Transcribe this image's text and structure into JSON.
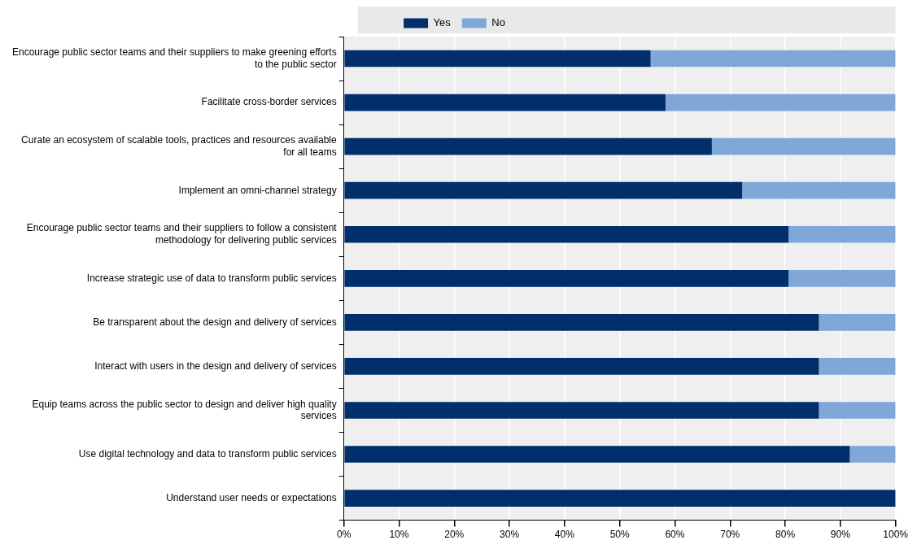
{
  "chart_data": {
    "type": "bar",
    "orientation": "horizontal",
    "stacked": true,
    "categories": [
      "Encourage public sector teams and their suppliers to make greening efforts to the public sector",
      "Facilitate cross-border services",
      "Curate an ecosystem of scalable tools, practices and resources available for all teams",
      "Implement an omni-channel strategy",
      "Encourage public sector teams and their suppliers to follow a consistent methodology for delivering public services",
      "Increase strategic use of data to transform public services",
      "Be transparent about the design and delivery of services",
      "Interact with users in the design and delivery of services",
      "Equip teams across the public sector to design and deliver high quality services",
      "Use digital technology and data to transform public services",
      "Understand user needs or expectations"
    ],
    "series": [
      {
        "name": "Yes",
        "color": "#002f6c",
        "values": [
          55.6,
          58.3,
          66.7,
          72.2,
          80.6,
          80.6,
          86.1,
          86.1,
          86.1,
          91.7,
          100
        ]
      },
      {
        "name": "No",
        "color": "#7fa8d9",
        "values": [
          44.4,
          41.7,
          33.3,
          27.8,
          19.4,
          19.4,
          13.9,
          13.9,
          13.9,
          8.3,
          0
        ]
      }
    ],
    "xlim": [
      0,
      100
    ],
    "xticks": [
      {
        "value": 0,
        "label": "0%"
      },
      {
        "value": 10,
        "label": "10%"
      },
      {
        "value": 20,
        "label": "20%"
      },
      {
        "value": 30,
        "label": "30%"
      },
      {
        "value": 40,
        "label": "40%"
      },
      {
        "value": 50,
        "label": "50%"
      },
      {
        "value": 60,
        "label": "60%"
      },
      {
        "value": 70,
        "label": "70%"
      },
      {
        "value": 80,
        "label": "80%"
      },
      {
        "value": 90,
        "label": "90%"
      },
      {
        "value": 100,
        "label": "100%"
      }
    ],
    "grid": "x",
    "legend": "top"
  }
}
